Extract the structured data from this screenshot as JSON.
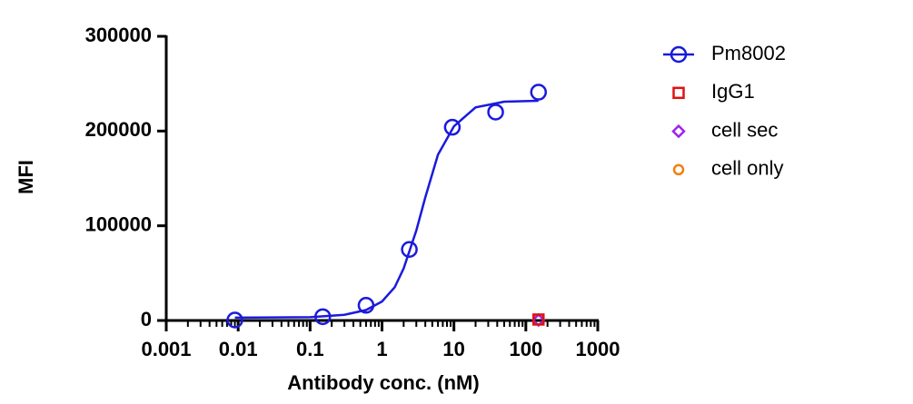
{
  "chart_data": {
    "type": "scatter",
    "x_label": "Antibody conc. (nM)",
    "y_label": "MFI",
    "xscale": "log",
    "xlim": [
      0.001,
      1000
    ],
    "xticks": [
      0.001,
      0.01,
      0.1,
      1,
      10,
      100,
      1000
    ],
    "minor_ticks": true,
    "ylim": [
      0,
      300000
    ],
    "yticks": [
      0,
      100000,
      200000,
      300000
    ],
    "legend": "right",
    "series": [
      {
        "name": "Pm8002",
        "color": "#1a1adc",
        "marker": "circle",
        "x": [
          0.009,
          0.15,
          0.6,
          2.4,
          9.5,
          38,
          150
        ],
        "values": [
          500,
          4000,
          16000,
          75000,
          204000,
          220000,
          241000
        ],
        "fit": {
          "x": [
            0.009,
            0.01,
            0.1,
            0.3,
            0.6,
            1,
            1.5,
            2,
            3,
            4,
            6,
            10,
            20,
            50,
            150
          ],
          "values": [
            3000,
            3000,
            3500,
            6000,
            11000,
            20000,
            35000,
            55000,
            95000,
            130000,
            175000,
            205000,
            225000,
            231000,
            232000
          ]
        }
      },
      {
        "name": "IgG1",
        "color": "#e01010",
        "marker": "square",
        "x": [
          150
        ],
        "values": [
          1000
        ]
      },
      {
        "name": "cell sec",
        "color": "#a020f0",
        "marker": "diamond",
        "x": [
          150
        ],
        "values": [
          500
        ]
      },
      {
        "name": "cell only",
        "color": "#f08010",
        "marker": "circle-small",
        "x": [
          150
        ],
        "values": [
          500
        ]
      }
    ]
  }
}
